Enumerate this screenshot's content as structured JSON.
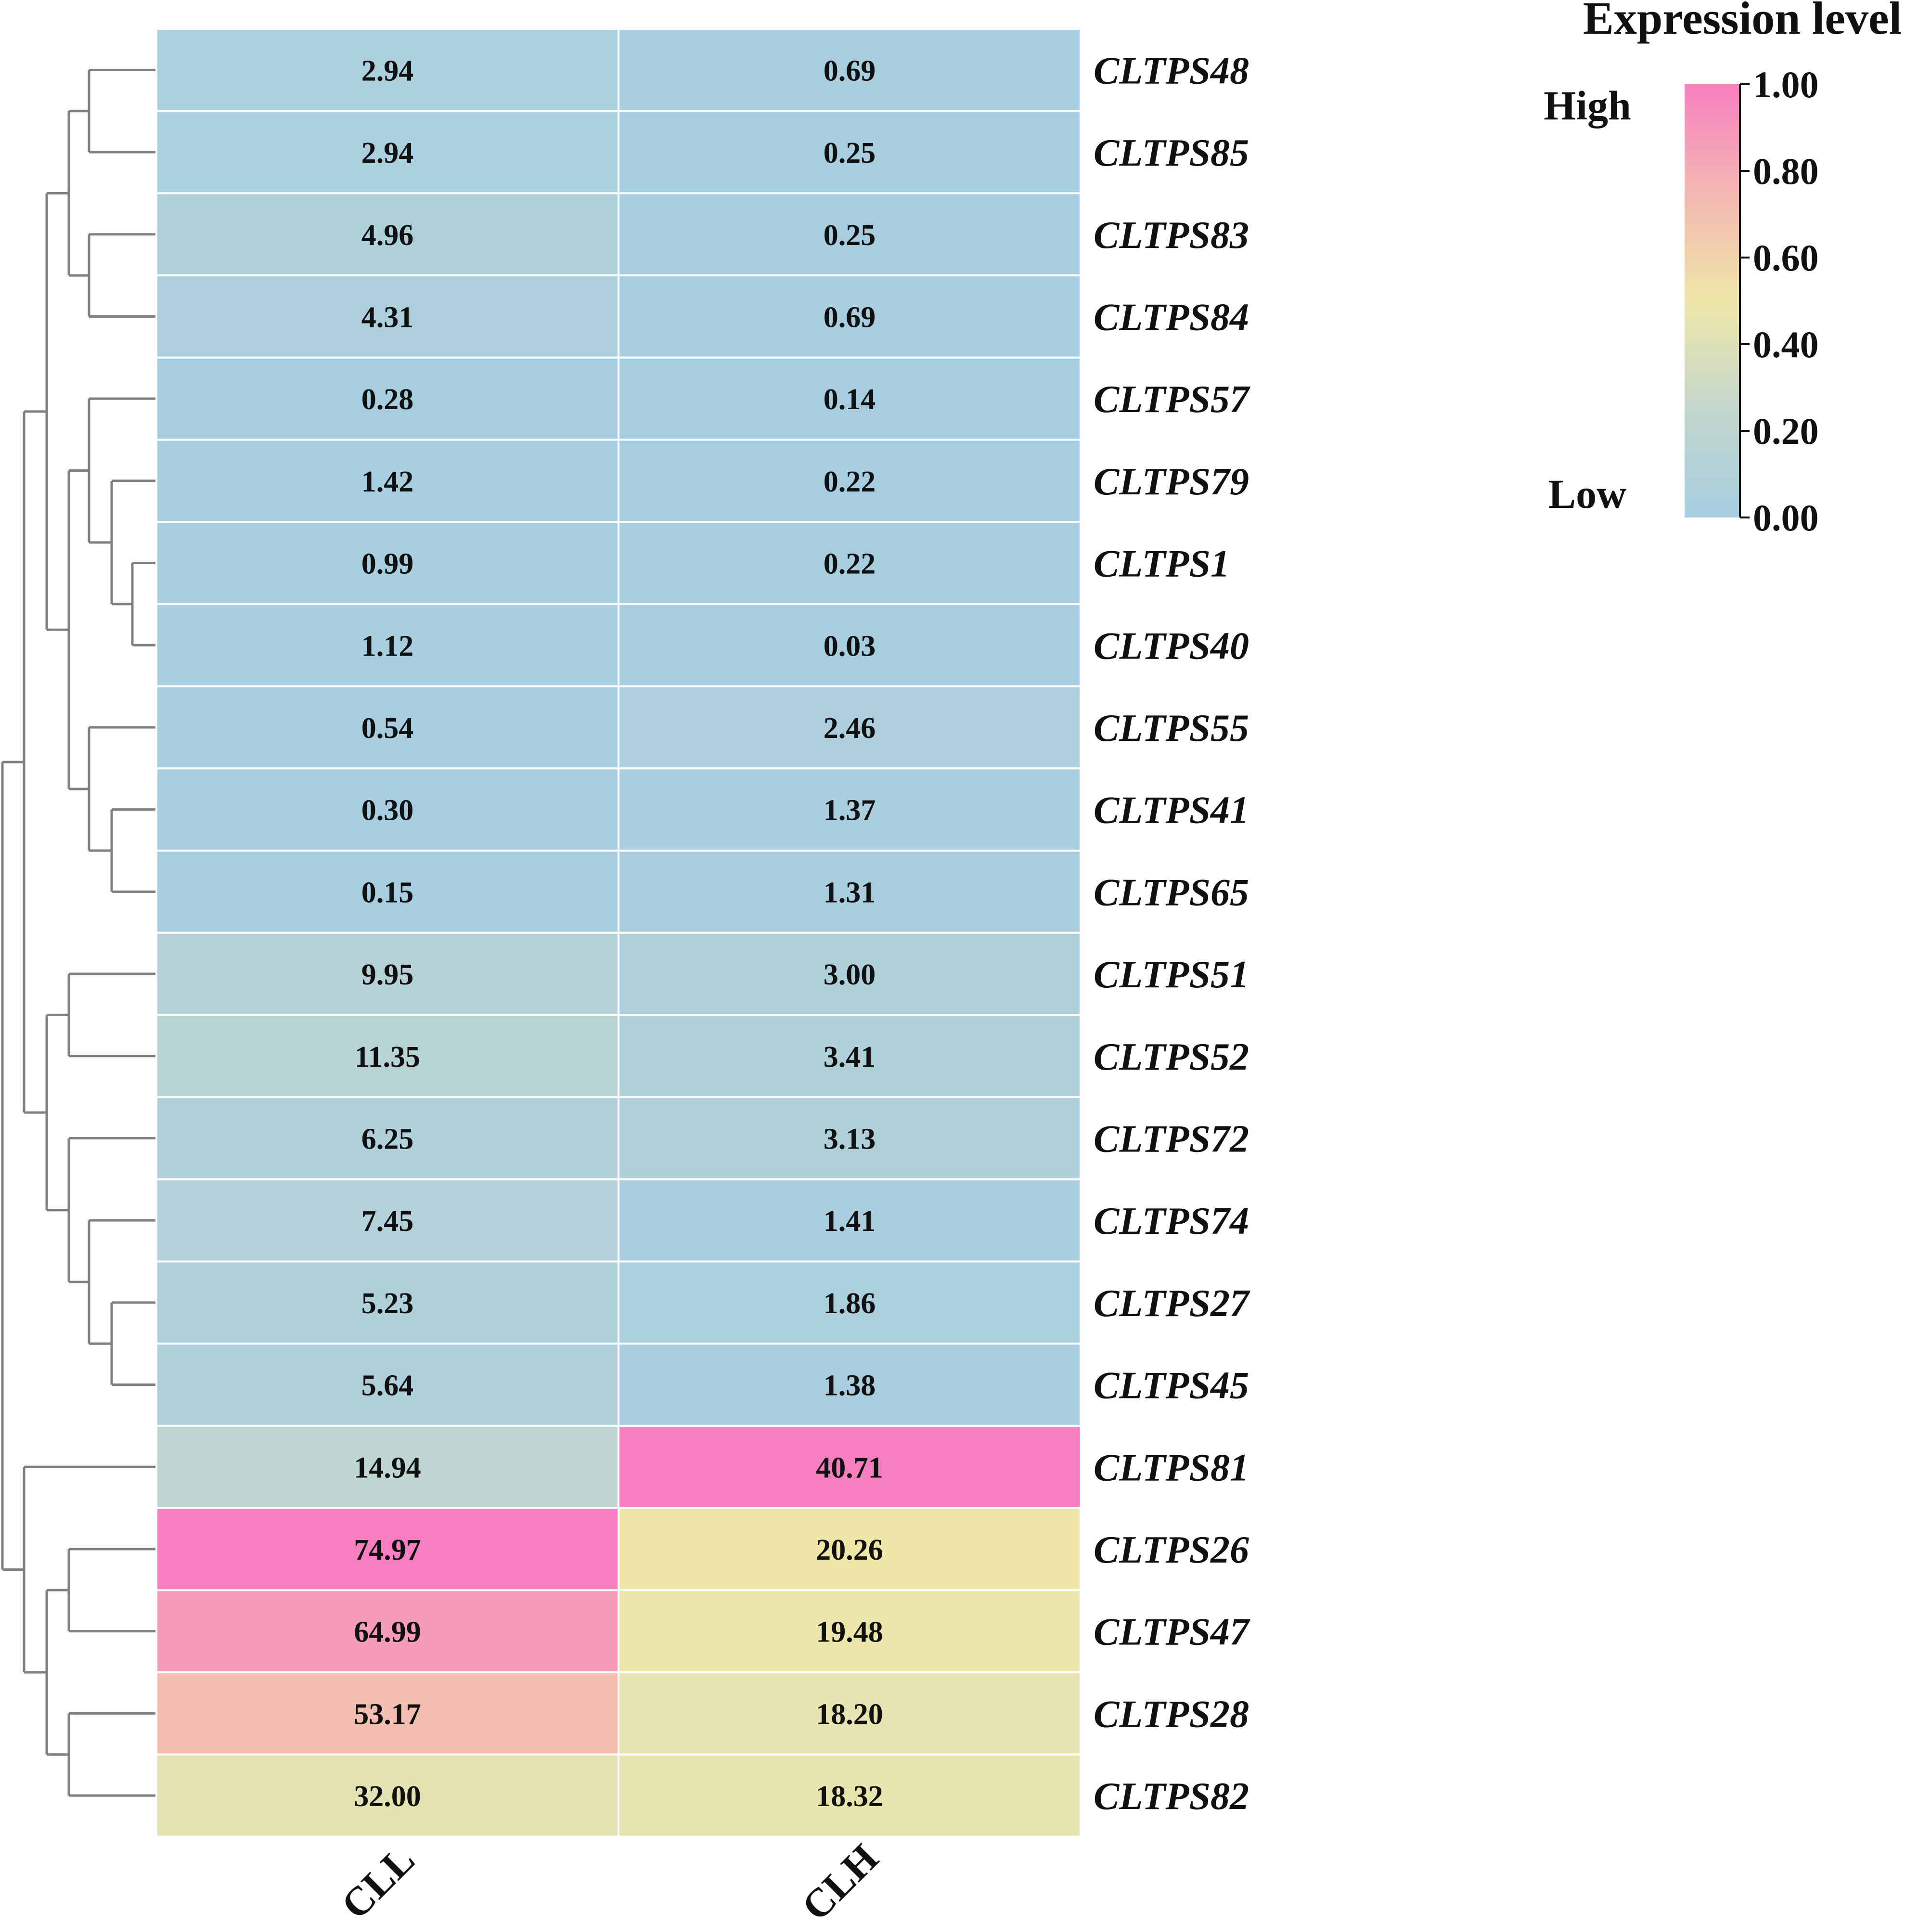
{
  "chart_data": {
    "type": "heatmap",
    "columns": [
      "CLL",
      "CLH"
    ],
    "rows": [
      "CLTPS48",
      "CLTPS85",
      "CLTPS83",
      "CLTPS84",
      "CLTPS57",
      "CLTPS79",
      "CLTPS1",
      "CLTPS40",
      "CLTPS55",
      "CLTPS41",
      "CLTPS65",
      "CLTPS51",
      "CLTPS52",
      "CLTPS72",
      "CLTPS74",
      "CLTPS27",
      "CLTPS45",
      "CLTPS81",
      "CLTPS26",
      "CLTPS47",
      "CLTPS28",
      "CLTPS82"
    ],
    "labels": [
      [
        "2.94",
        "0.69"
      ],
      [
        "2.94",
        "0.25"
      ],
      [
        "4.96",
        "0.25"
      ],
      [
        "4.31",
        "0.69"
      ],
      [
        "0.28",
        "0.14"
      ],
      [
        "1.42",
        "0.22"
      ],
      [
        "0.99",
        "0.22"
      ],
      [
        "1.12",
        "0.03"
      ],
      [
        "0.54",
        "2.46"
      ],
      [
        "0.30",
        "1.37"
      ],
      [
        "0.15",
        "1.31"
      ],
      [
        "9.95",
        "3.00"
      ],
      [
        "11.35",
        "3.41"
      ],
      [
        "6.25",
        "3.13"
      ],
      [
        "7.45",
        "1.41"
      ],
      [
        "5.23",
        "1.86"
      ],
      [
        "5.64",
        "1.38"
      ],
      [
        "14.94",
        "40.71"
      ],
      [
        "74.97",
        "20.26"
      ],
      [
        "64.99",
        "19.48"
      ],
      [
        "53.17",
        "18.20"
      ],
      [
        "32.00",
        "18.32"
      ]
    ],
    "normalization": "each column scaled to 0-1 by its maximum value",
    "legend": {
      "title": "Expression level",
      "high_label": "High",
      "low_label": "Low",
      "ticks": [
        "1.00",
        "0.80",
        "0.60",
        "0.40",
        "0.20",
        "0.00"
      ],
      "colors": [
        "#a6cde0",
        "#c4d7cd",
        "#efe7a8",
        "#f3b7b2",
        "#f77fbf"
      ],
      "position": "top-right"
    },
    "dendrogram": {
      "side": "left",
      "color": "#808080"
    }
  }
}
